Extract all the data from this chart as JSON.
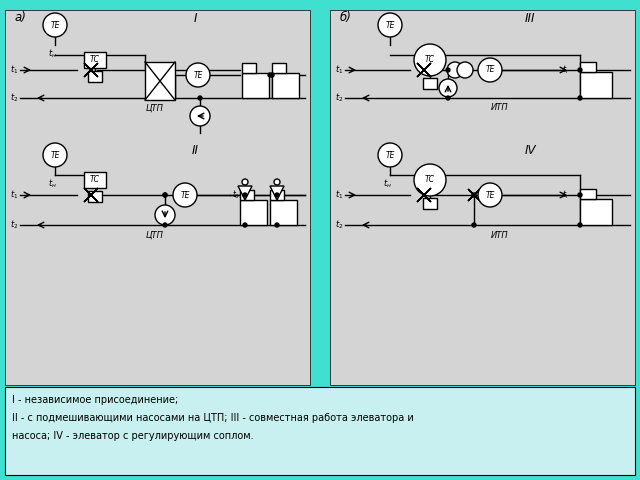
{
  "bg_color": "#40e0d0",
  "diagram_bg": "#e8e8e8",
  "line_color": "#000000",
  "fig_width": 6.4,
  "fig_height": 4.8,
  "caption_line1": "I - независимое присоединение;",
  "caption_line2": "II - с подмешивающими насосами на ЦТП; III - совместная работа элеватора и",
  "caption_line3": "насоса; IV - элеватор с регулирующим соплом.",
  "label_a": "а)",
  "label_b": "б)",
  "label_I": "I",
  "label_II": "II",
  "label_III": "III",
  "label_IV": "IV",
  "label_CTP1": "ЦТП",
  "label_CTP2": "ЦТП",
  "label_ITP1": "ИТП",
  "label_ITP2": "ИТП"
}
